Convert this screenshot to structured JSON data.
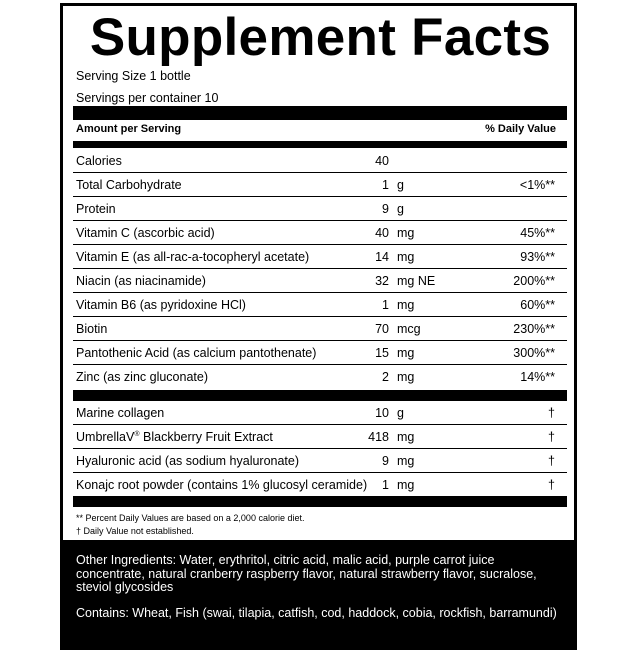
{
  "title": "Supplement Facts",
  "serving_size": "Serving Size 1 bottle",
  "servings_per_container": "Servings per container 10",
  "header": {
    "amount": "Amount per Serving",
    "dv": "% Daily Value"
  },
  "rows": [
    {
      "name": "Calories",
      "amount": "40",
      "unit": "",
      "dv": ""
    },
    {
      "name": "Total Carbohydrate",
      "amount": "1",
      "unit": "g",
      "dv": "<1%**"
    },
    {
      "name": "Protein",
      "amount": "9",
      "unit": "g",
      "dv": ""
    },
    {
      "name": "Vitamin C (ascorbic acid)",
      "amount": "40",
      "unit": "mg",
      "dv": "45%**"
    },
    {
      "name": "Vitamin E (as all-rac-a-tocopheryl acetate)",
      "amount": "14",
      "unit": "mg",
      "dv": "93%**"
    },
    {
      "name": "Niacin (as niacinamide)",
      "amount": "32",
      "unit": "mg NE",
      "dv": "200%**"
    },
    {
      "name": "Vitamin B6 (as pyridoxine HCl)",
      "amount": "1",
      "unit": "mg",
      "dv": "60%**"
    },
    {
      "name": "Biotin",
      "amount": "70",
      "unit": "mcg",
      "dv": "230%**"
    },
    {
      "name": "Pantothenic Acid (as calcium pantothenate)",
      "amount": "15",
      "unit": "mg",
      "dv": "300%**"
    },
    {
      "name": "Zinc (as zinc gluconate)",
      "amount": "2",
      "unit": "mg",
      "dv": "14%**"
    }
  ],
  "rows2": [
    {
      "name": "Marine collagen",
      "amount": "10",
      "unit": "g",
      "dv": "†"
    },
    {
      "name": "UmbrellaV",
      "sup": "®",
      "name2": " Blackberry Fruit Extract",
      "amount": "418",
      "unit": "mg",
      "dv": "†"
    },
    {
      "name": "Hyaluronic acid (as sodium hyaluronate)",
      "amount": "9",
      "unit": "mg",
      "dv": "†"
    },
    {
      "name": "Konajc root powder (contains 1% glucosyl ceramide)",
      "amount": "1",
      "unit": "mg",
      "dv": "†"
    }
  ],
  "notes": [
    "** Percent Daily Values are based on a 2,000 calorie diet.",
    "† Daily Value not established."
  ],
  "other_ingredients": "Other Ingredients: Water, erythritol, citric acid, malic acid, purple carrot juice concentrate, natural cranberry raspberry flavor, natural strawberry flavor, sucralose, steviol glycosides",
  "contains": "Contains: Wheat, Fish (swai, tilapia, catfish, cod, haddock, cobia, rockfish, barramundi)"
}
